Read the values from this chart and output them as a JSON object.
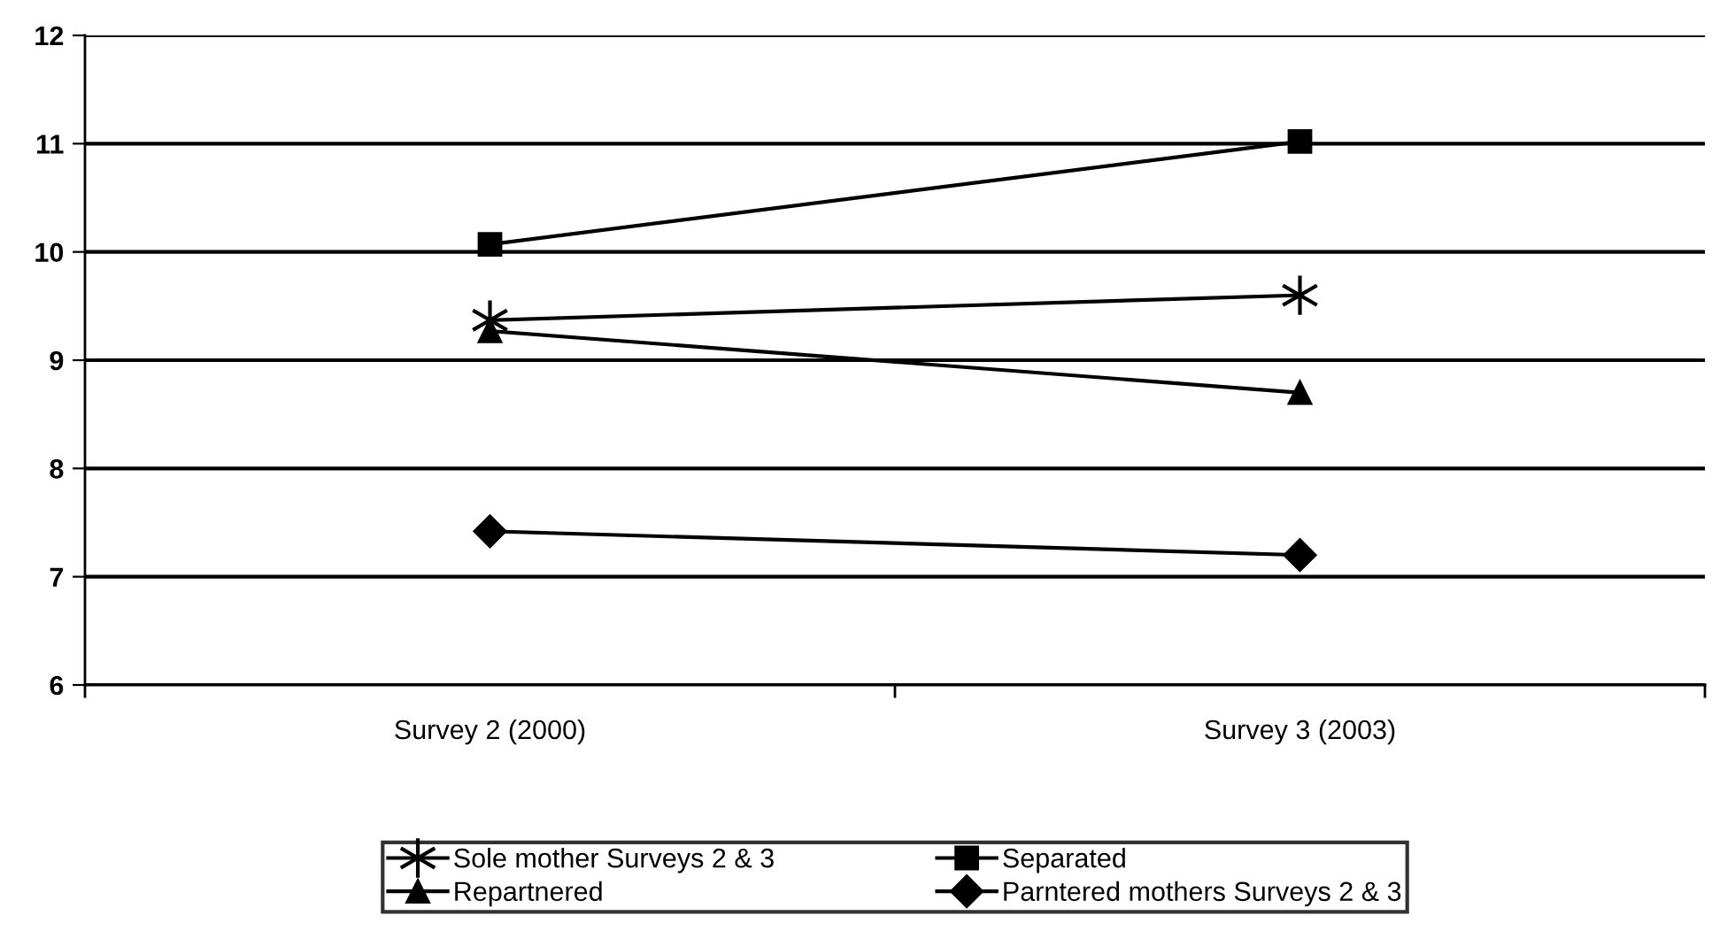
{
  "chart_data": {
    "type": "line",
    "categories": [
      "Survey 2 (2000)",
      "Survey 3 (2003)"
    ],
    "series": [
      {
        "name": "Sole mother Surveys 2 & 3",
        "color": "#000000",
        "marker": "cross",
        "values": [
          9.37,
          9.6
        ]
      },
      {
        "name": "Separated",
        "color": "#000000",
        "marker": "square",
        "values": [
          10.07,
          11.02
        ]
      },
      {
        "name": "Repartnered",
        "color": "#000000",
        "marker": "triangle",
        "values": [
          9.27,
          8.7
        ]
      },
      {
        "name": "Parntered mothers Surveys 2 & 3",
        "color": "#000000",
        "marker": "diamond",
        "values": [
          7.42,
          7.2
        ]
      }
    ],
    "ylim": [
      6,
      12
    ],
    "yticks": [
      6,
      7,
      8,
      9,
      10,
      11,
      12
    ],
    "grid": "y",
    "legend": "bottom",
    "line_style": "solid"
  }
}
